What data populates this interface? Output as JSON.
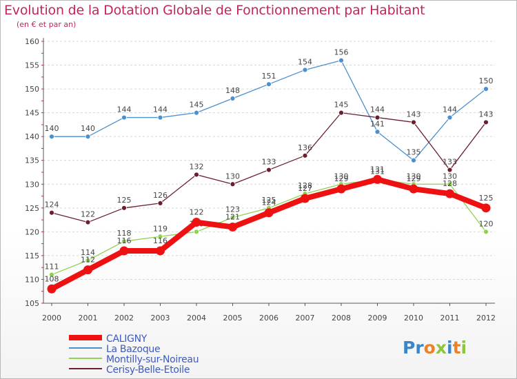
{
  "header": {
    "title": "Evolution de la Dotation Globale de Fonctionnement par Habitant",
    "subtitle": "(en € et par an)"
  },
  "logo": {
    "text": "Proxiti",
    "letters": [
      {
        "ch": "P",
        "color": "#3b86c8"
      },
      {
        "ch": "r",
        "color": "#3b86c8"
      },
      {
        "ch": "o",
        "color": "#e8832a"
      },
      {
        "ch": "x",
        "color": "#8cc63f"
      },
      {
        "ch": "i",
        "color": "#3b86c8"
      },
      {
        "ch": "t",
        "color": "#e8832a"
      },
      {
        "ch": "i",
        "color": "#8cc63f"
      }
    ]
  },
  "chart_data": {
    "type": "line",
    "title": "Evolution de la Dotation Globale de Fonctionnement par Habitant",
    "subtitle": "(en € et par an)",
    "xlabel": "",
    "ylabel": "",
    "ylim": [
      105,
      160
    ],
    "yticks": [
      105,
      110,
      115,
      120,
      125,
      130,
      135,
      140,
      145,
      150,
      155,
      160
    ],
    "grid": "horizontal dashed",
    "legend_position": "bottom-left",
    "categories": [
      "2000",
      "2001",
      "2002",
      "2003",
      "2004",
      "2005",
      "2006",
      "2007",
      "2008",
      "2009",
      "2010",
      "2011",
      "2012"
    ],
    "series": [
      {
        "name": "La Bazoque",
        "color": "#4a8fcf",
        "values": [
          140,
          140,
          144,
          144,
          145,
          148,
          151,
          154,
          156,
          141,
          135,
          144,
          150
        ]
      },
      {
        "name": "Cerisy-Belle-Etoile",
        "color": "#6b1f2e",
        "values": [
          124,
          122,
          125,
          126,
          132,
          130,
          133,
          136,
          145,
          144,
          143,
          133,
          143
        ]
      },
      {
        "name": "Montilly-sur-Noireau",
        "color": "#8fd14f",
        "values": [
          111,
          114,
          118,
          119,
          120,
          123,
          125,
          128,
          130,
          131,
          130,
          130,
          120
        ]
      },
      {
        "name": "CALIGNY",
        "color": "#ee1111",
        "values": [
          108,
          112,
          116,
          116,
          122,
          121,
          124,
          127,
          129,
          131,
          129,
          128,
          125
        ]
      }
    ],
    "legend_order": [
      "CALIGNY",
      "La Bazoque",
      "Montilly-sur-Noireau",
      "Cerisy-Belle-Etoile"
    ]
  }
}
